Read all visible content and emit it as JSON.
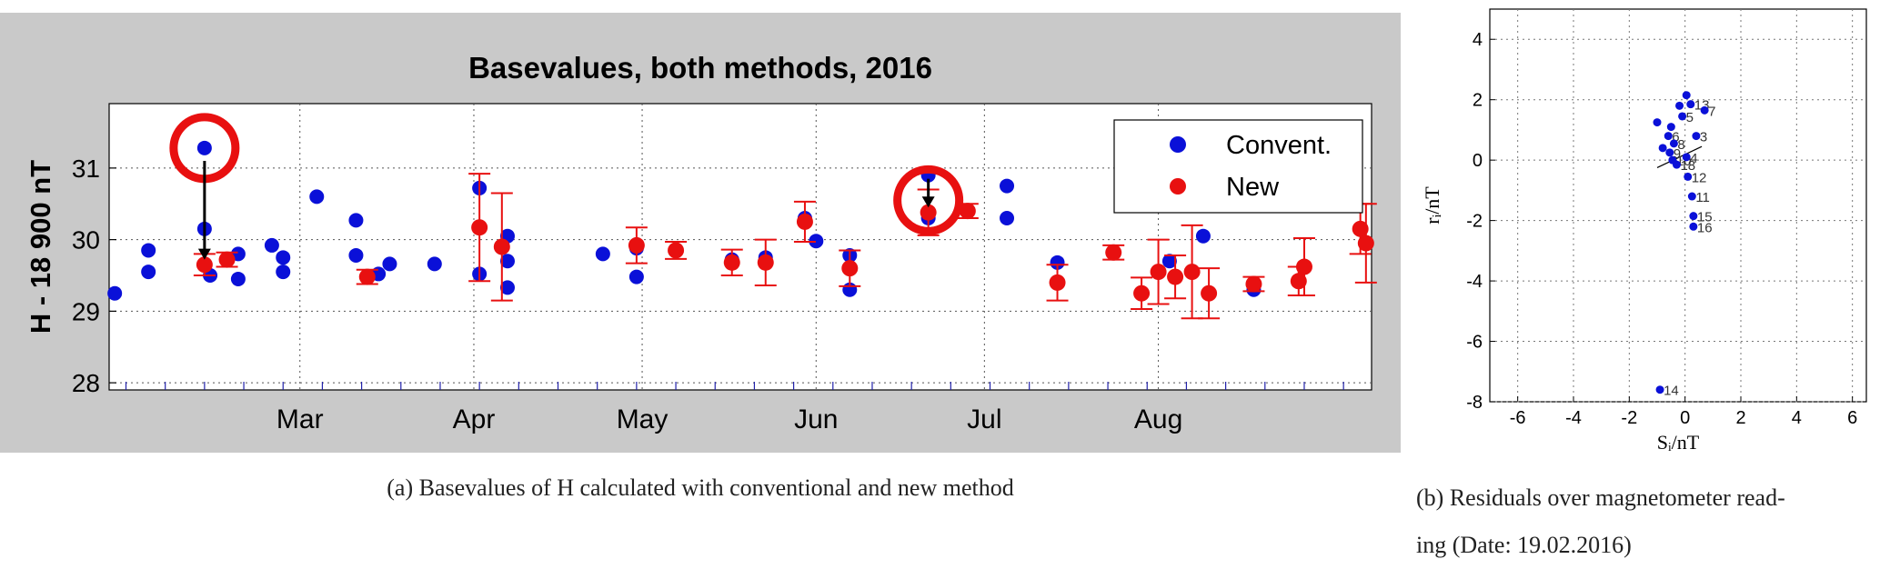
{
  "left_panel": {
    "title": "Basevalues, both methods,  2016",
    "ylabel": "H - 18 900 nT",
    "caption": "(a) Basevalues of H calculated with conventional and new method"
  },
  "right_panel": {
    "xlabel": "Sᵢ/nT",
    "ylabel": "rᵢ/nT",
    "caption_line1": "(b) Residuals over magnetometer read-",
    "caption_line2": "ing (Date: 19.02.2016)"
  },
  "colors": {
    "conventional": "#0a10d8",
    "new": "#e81010",
    "highlight": "#e81010",
    "background": "#c9c9c9"
  },
  "chart_data": [
    {
      "type": "scatter",
      "title": "Basevalues, both methods,  2016",
      "xlabel": "",
      "ylabel": "H - 18 900 nT",
      "x_unit": "day of year 2016",
      "xlim": [
        27,
        252
      ],
      "ylim": [
        27.9,
        31.9
      ],
      "yticks": [
        28,
        29,
        30,
        31
      ],
      "month_ticks": [
        {
          "label": "Mar",
          "x": 61
        },
        {
          "label": "Apr",
          "x": 92
        },
        {
          "label": "May",
          "x": 122
        },
        {
          "label": "Jun",
          "x": 153
        },
        {
          "label": "Jul",
          "x": 183
        },
        {
          "label": "Aug",
          "x": 214
        }
      ],
      "grid": true,
      "legend_position": "top-right",
      "series": [
        {
          "name": "Convent.",
          "marker": "circle",
          "points": [
            [
              28,
              29.25
            ],
            [
              34,
              29.85
            ],
            [
              34,
              29.55
            ],
            [
              44,
              30.15
            ],
            [
              44,
              31.28
            ],
            [
              45,
              29.5
            ],
            [
              50,
              29.8
            ],
            [
              50,
              29.45
            ],
            [
              56,
              29.92
            ],
            [
              58,
              29.75
            ],
            [
              58,
              29.55
            ],
            [
              64,
              30.6
            ],
            [
              71,
              30.27
            ],
            [
              71,
              29.78
            ],
            [
              75,
              29.52
            ],
            [
              77,
              29.66
            ],
            [
              85,
              29.66
            ],
            [
              93,
              30.72
            ],
            [
              93,
              29.52
            ],
            [
              98,
              30.05
            ],
            [
              98,
              29.7
            ],
            [
              98,
              29.33
            ],
            [
              115,
              29.8
            ],
            [
              121,
              29.88
            ],
            [
              121,
              29.48
            ],
            [
              128,
              29.85
            ],
            [
              138,
              29.72
            ],
            [
              144,
              29.75
            ],
            [
              151,
              30.3
            ],
            [
              153,
              29.98
            ],
            [
              159,
              29.78
            ],
            [
              159,
              29.3
            ],
            [
              173,
              30.9
            ],
            [
              173,
              30.3
            ],
            [
              187,
              30.75
            ],
            [
              187,
              30.3
            ],
            [
              196,
              29.68
            ],
            [
              216,
              29.7
            ],
            [
              222,
              30.05
            ],
            [
              231,
              29.3
            ]
          ]
        },
        {
          "name": "New",
          "marker": "circle",
          "points": [
            {
              "x": 44,
              "y": 29.65,
              "err": 0.15
            },
            {
              "x": 48,
              "y": 29.72,
              "err": 0.1
            },
            {
              "x": 73,
              "y": 29.48,
              "err": 0.1
            },
            {
              "x": 93,
              "y": 30.17,
              "err": 0.75
            },
            {
              "x": 97,
              "y": 29.9,
              "err": 0.75
            },
            {
              "x": 121,
              "y": 29.92,
              "err": 0.25
            },
            {
              "x": 128,
              "y": 29.85,
              "err": 0.12
            },
            {
              "x": 138,
              "y": 29.68,
              "err": 0.18
            },
            {
              "x": 144,
              "y": 29.68,
              "err": 0.32
            },
            {
              "x": 151,
              "y": 30.25,
              "err": 0.28
            },
            {
              "x": 159,
              "y": 29.6,
              "err": 0.25
            },
            {
              "x": 173,
              "y": 30.38,
              "err": 0.32
            },
            {
              "x": 180,
              "y": 30.4,
              "err": 0.1
            },
            {
              "x": 196,
              "y": 29.4,
              "err": 0.25
            },
            {
              "x": 206,
              "y": 29.82,
              "err": 0.1
            },
            {
              "x": 211,
              "y": 29.25,
              "err": 0.22
            },
            {
              "x": 214,
              "y": 29.55,
              "err": 0.45
            },
            {
              "x": 217,
              "y": 29.48,
              "err": 0.3
            },
            {
              "x": 220,
              "y": 29.55,
              "err": 0.65
            },
            {
              "x": 223,
              "y": 29.25,
              "err": 0.35
            },
            {
              "x": 231,
              "y": 29.38,
              "err": 0.1
            },
            {
              "x": 239,
              "y": 29.42,
              "err": 0.2
            },
            {
              "x": 240,
              "y": 29.62,
              "err": 0.4
            },
            {
              "x": 250,
              "y": 30.15,
              "err": 0.35
            },
            {
              "x": 251,
              "y": 29.95,
              "err": 0.55
            }
          ]
        }
      ],
      "annotations": [
        {
          "type": "circle-highlight",
          "x": 44,
          "y": 31.28
        },
        {
          "type": "arrow",
          "x": 44,
          "from": 31.1,
          "to": 29.72
        },
        {
          "type": "circle-highlight",
          "x": 173,
          "y": 30.55
        },
        {
          "type": "arrow",
          "x": 173,
          "from": 30.85,
          "to": 30.45
        }
      ]
    },
    {
      "type": "scatter",
      "title": "",
      "xlabel": "Sᵢ/nT",
      "ylabel": "rᵢ/nT",
      "xlim": [
        -7,
        6.5
      ],
      "ylim": [
        -8,
        5
      ],
      "xticks": [
        -6,
        -4,
        -2,
        0,
        2,
        4,
        6
      ],
      "yticks": [
        -8,
        -6,
        -4,
        -2,
        0,
        2,
        4
      ],
      "grid": true,
      "series": [
        {
          "name": "",
          "points": [
            {
              "x": -1.0,
              "y": 1.25,
              "label": ""
            },
            {
              "x": -0.6,
              "y": 0.8,
              "label": "6"
            },
            {
              "x": -0.5,
              "y": 1.1,
              "label": ""
            },
            {
              "x": -0.4,
              "y": 0.55,
              "label": "8"
            },
            {
              "x": -0.55,
              "y": 0.25,
              "label": "9"
            },
            {
              "x": -0.45,
              "y": 0.0,
              "label": "10"
            },
            {
              "x": -0.3,
              "y": -0.15,
              "label": "18"
            },
            {
              "x": -0.8,
              "y": 0.4,
              "label": ""
            },
            {
              "x": -0.2,
              "y": 1.8,
              "label": ""
            },
            {
              "x": -0.1,
              "y": 1.45,
              "label": "5"
            },
            {
              "x": 0.05,
              "y": 2.15,
              "label": ""
            },
            {
              "x": 0.2,
              "y": 1.85,
              "label": "13"
            },
            {
              "x": 0.7,
              "y": 1.65,
              "label": "7"
            },
            {
              "x": 0.4,
              "y": 0.8,
              "label": "3"
            },
            {
              "x": 0.05,
              "y": 0.1,
              "label": "4"
            },
            {
              "x": 0.1,
              "y": -0.55,
              "label": "12"
            },
            {
              "x": 0.25,
              "y": -1.2,
              "label": "11"
            },
            {
              "x": 0.3,
              "y": -1.85,
              "label": "15"
            },
            {
              "x": 0.3,
              "y": -2.2,
              "label": "16"
            },
            {
              "x": -0.9,
              "y": -7.6,
              "label": "14"
            }
          ]
        }
      ],
      "regression_line": [
        [
          -1.0,
          -0.25
        ],
        [
          0.6,
          0.45
        ]
      ]
    }
  ]
}
